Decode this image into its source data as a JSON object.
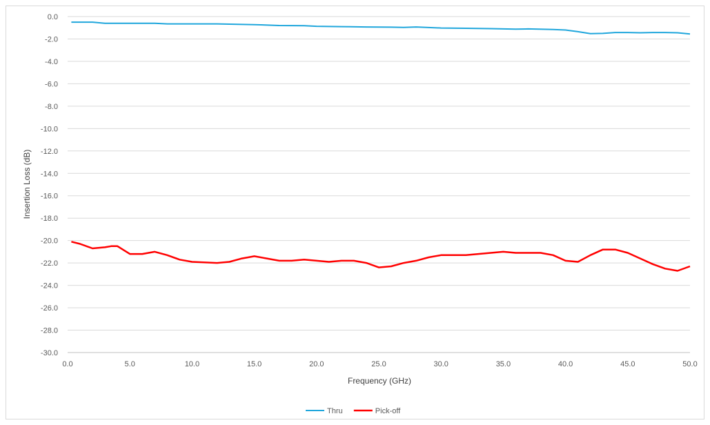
{
  "chart_data": {
    "type": "line",
    "title": "",
    "xlabel": "Frequency (GHz)",
    "ylabel": "Insertion Loss (dB)",
    "xlim": [
      0,
      50
    ],
    "ylim": [
      -30,
      0
    ],
    "x_ticks": [
      0,
      5,
      10,
      15,
      20,
      25,
      30,
      35,
      40,
      45,
      50
    ],
    "x_tick_labels": [
      "0.0",
      "5.0",
      "10.0",
      "15.0",
      "20.0",
      "25.0",
      "30.0",
      "35.0",
      "40.0",
      "45.0",
      "50.0"
    ],
    "y_ticks": [
      0,
      -2,
      -4,
      -6,
      -8,
      -10,
      -12,
      -14,
      -16,
      -18,
      -20,
      -22,
      -24,
      -26,
      -28,
      -30
    ],
    "y_tick_labels": [
      "0.0",
      "-2.0",
      "-4.0",
      "-6.0",
      "-8.0",
      "-10.0",
      "-12.0",
      "-14.0",
      "-16.0",
      "-18.0",
      "-20.0",
      "-22.0",
      "-24.0",
      "-26.0",
      "-28.0",
      "-30.0"
    ],
    "grid": "horizontal",
    "legend_position": "bottom",
    "series": [
      {
        "name": "Thru",
        "color": "#1fa6dc",
        "x": [
          0.3,
          2,
          3,
          5,
          7,
          8,
          10,
          12,
          13,
          15,
          17,
          19,
          20,
          22,
          24,
          26,
          27,
          28,
          30,
          32,
          34,
          36,
          37,
          39,
          40,
          41,
          42,
          43,
          44,
          45,
          46,
          47,
          48,
          49,
          50
        ],
        "y": [
          -0.5,
          -0.5,
          -0.6,
          -0.6,
          -0.6,
          -0.65,
          -0.65,
          -0.65,
          -0.68,
          -0.72,
          -0.8,
          -0.82,
          -0.87,
          -0.9,
          -0.93,
          -0.95,
          -0.97,
          -0.93,
          -1.02,
          -1.05,
          -1.08,
          -1.12,
          -1.1,
          -1.15,
          -1.2,
          -1.35,
          -1.52,
          -1.5,
          -1.42,
          -1.42,
          -1.45,
          -1.42,
          -1.42,
          -1.45,
          -1.55
        ]
      },
      {
        "name": "Pick-off",
        "color": "#ff0000",
        "x": [
          0.3,
          1,
          2,
          3,
          3.5,
          4,
          5,
          6,
          7,
          8,
          9,
          10,
          12,
          13,
          14,
          15,
          16,
          17,
          18,
          19,
          20,
          21,
          22,
          23,
          24,
          25,
          26,
          27,
          28,
          29,
          30,
          31,
          32,
          33,
          34,
          35,
          36,
          37,
          38,
          39,
          40,
          41,
          42,
          43,
          44,
          45,
          46,
          47,
          48,
          49,
          50
        ],
        "y": [
          -20.1,
          -20.3,
          -20.7,
          -20.6,
          -20.5,
          -20.5,
          -21.2,
          -21.2,
          -21.0,
          -21.3,
          -21.7,
          -21.9,
          -22.0,
          -21.9,
          -21.6,
          -21.4,
          -21.6,
          -21.8,
          -21.8,
          -21.7,
          -21.8,
          -21.9,
          -21.8,
          -21.8,
          -22.0,
          -22.4,
          -22.3,
          -22.0,
          -21.8,
          -21.5,
          -21.3,
          -21.3,
          -21.3,
          -21.2,
          -21.1,
          -21.0,
          -21.1,
          -21.1,
          -21.1,
          -21.3,
          -21.8,
          -21.9,
          -21.3,
          -20.8,
          -20.8,
          -21.1,
          -21.6,
          -22.1,
          -22.5,
          -22.7,
          -22.3
        ]
      }
    ]
  }
}
